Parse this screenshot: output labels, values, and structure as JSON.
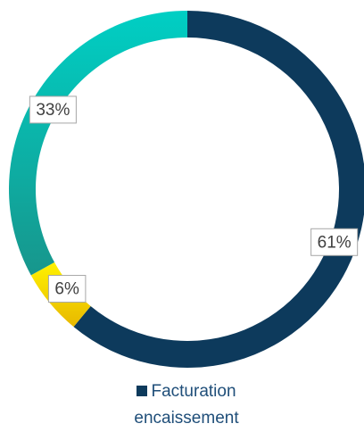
{
  "chart_data": {
    "type": "donut",
    "categories": [
      "Facturation encaissement",
      null,
      null
    ],
    "values": [
      61,
      6,
      33
    ],
    "value_labels": [
      "61%",
      "6%",
      "33%"
    ],
    "colors": [
      "#0d3a5c",
      "#f2c500",
      "#14aaa0"
    ],
    "legend": "bottom"
  }
}
